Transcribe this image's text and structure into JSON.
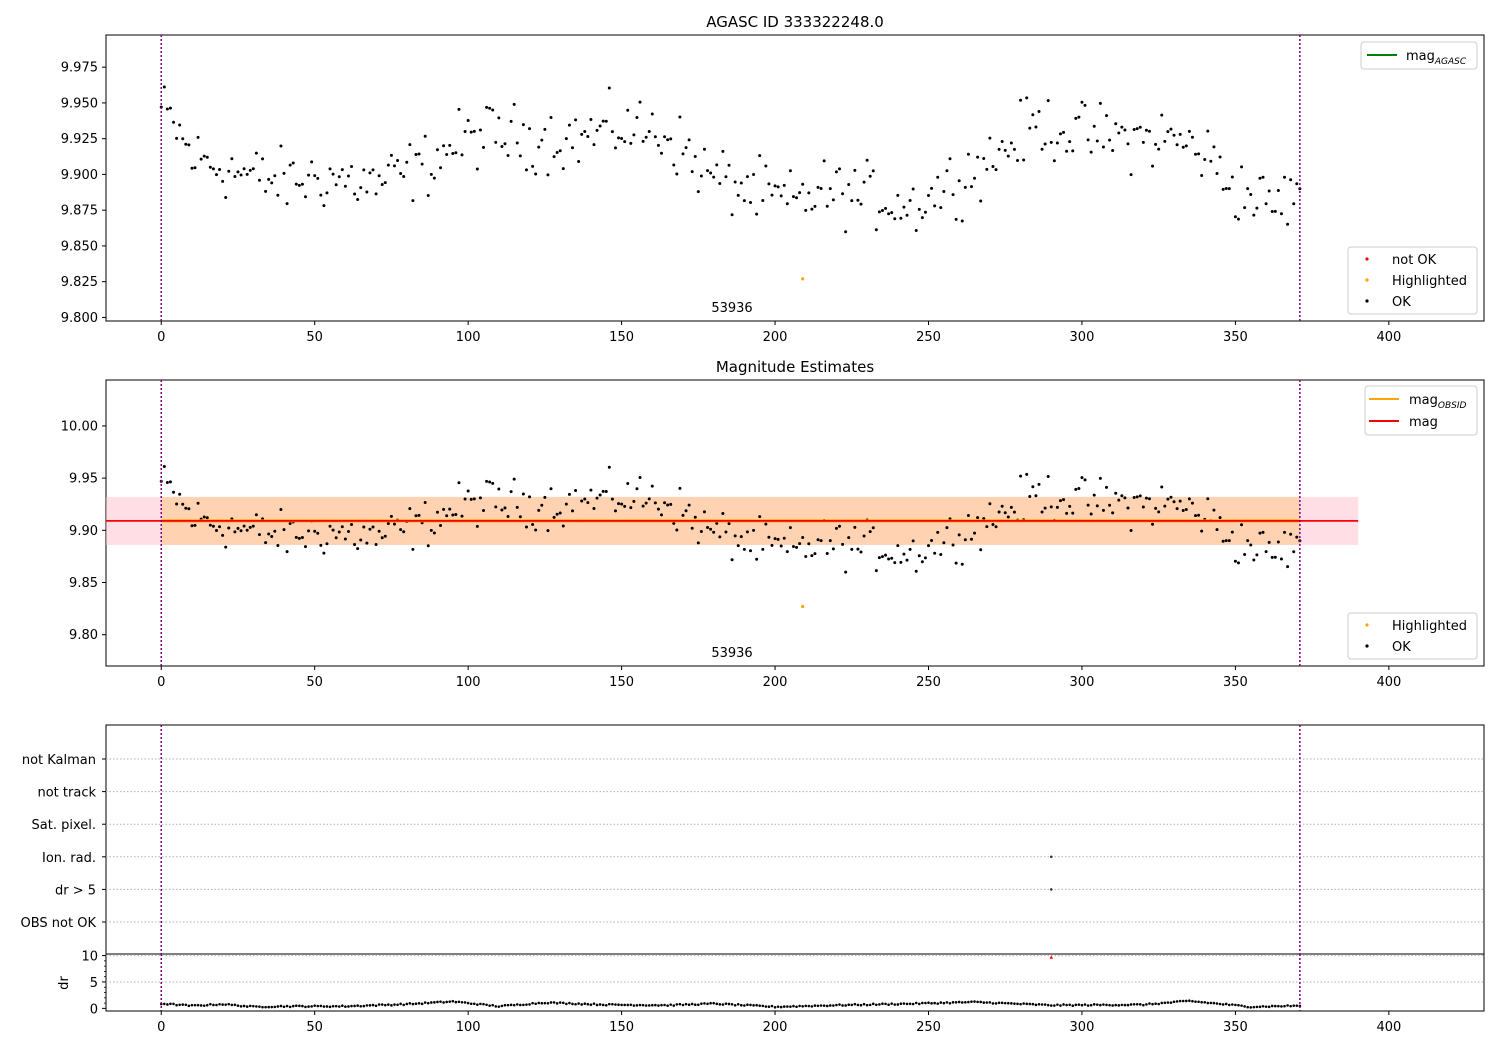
{
  "chart_data": [
    {
      "type": "scatter",
      "title": "AGASC ID 333322248.0",
      "xlim": [
        -18,
        431
      ],
      "ylim": [
        9.7975,
        9.9975
      ],
      "xticks": [
        0,
        50,
        100,
        150,
        200,
        250,
        300,
        350,
        400
      ],
      "yticks": [
        9.8,
        9.825,
        9.85,
        9.875,
        9.9,
        9.925,
        9.95,
        9.975
      ],
      "ytick_labels": [
        "9.800",
        "9.825",
        "9.850",
        "9.875",
        "9.900",
        "9.925",
        "9.950",
        "9.975"
      ],
      "vlines": [
        0,
        371
      ],
      "annotation": {
        "text": "53936",
        "x": 185
      },
      "legend_lines": [
        {
          "main": "mag",
          "sub": "AGASC",
          "color": "#008000"
        }
      ],
      "legend_markers": [
        {
          "label": "not OK",
          "color": "#ff0000"
        },
        {
          "label": "Highlighted",
          "color": "#ffa500"
        },
        {
          "label": "OK",
          "color": "#000000"
        }
      ],
      "highlighted_points": [
        {
          "x": 209,
          "y": 9.827
        }
      ]
    },
    {
      "type": "scatter",
      "title": "Magnitude Estimates",
      "xlim": [
        -18,
        431
      ],
      "ylim": [
        9.77,
        10.044
      ],
      "xticks": [
        0,
        50,
        100,
        150,
        200,
        250,
        300,
        350,
        400
      ],
      "yticks": [
        9.8,
        9.85,
        9.9,
        9.95,
        10.0
      ],
      "ytick_labels": [
        "9.80",
        "9.85",
        "9.90",
        "9.95",
        "10.00"
      ],
      "vlines": [
        0,
        371
      ],
      "annotation": {
        "text": "53936",
        "x": 185
      },
      "mag": 9.909,
      "mag_band": [
        9.886,
        9.932
      ],
      "mag_band_xrange": [
        -18,
        390
      ],
      "mag_obsid": 9.909,
      "mag_obsid_band": [
        9.886,
        9.932
      ],
      "mag_obsid_xrange": [
        0,
        371
      ],
      "legend_lines": [
        {
          "main": "mag",
          "sub": "OBSID",
          "color": "#ffa500"
        },
        {
          "main": "mag",
          "sub": "",
          "color": "#ff0000"
        }
      ],
      "legend_markers": [
        {
          "label": "Highlighted",
          "color": "#ffa500"
        },
        {
          "label": "OK",
          "color": "#000000"
        }
      ],
      "highlighted_points": [
        {
          "x": 209,
          "y": 9.827
        }
      ]
    },
    {
      "type": "scatter",
      "xlim": [
        -18,
        431
      ],
      "flag_labels": [
        "not Kalman",
        "not track",
        "Sat. pixel.",
        "Ion. rad.",
        "dr > 5",
        "OBS not OK"
      ],
      "flag_points": [
        {
          "flag": "Ion. rad.",
          "x": 290
        },
        {
          "flag": "dr > 5",
          "x": 290
        }
      ],
      "vlines": [
        0,
        371
      ]
    },
    {
      "type": "scatter",
      "xlim": [
        -18,
        431
      ],
      "ylim": [
        -0.5,
        10.3
      ],
      "ylabel": "dr",
      "yticks": [
        0,
        5,
        10
      ],
      "xticks": [
        0,
        50,
        100,
        150,
        200,
        250,
        300,
        350,
        400
      ],
      "vlines": [
        0,
        371
      ],
      "red_points": [
        {
          "x": 290,
          "y": 9.7
        }
      ],
      "segment_means": [
        {
          "x": 0,
          "y": 0.9
        },
        {
          "x": 10,
          "y": 0.5
        },
        {
          "x": 20,
          "y": 0.8
        },
        {
          "x": 30,
          "y": 0.3
        },
        {
          "x": 40,
          "y": 0.4
        },
        {
          "x": 60,
          "y": 0.4
        },
        {
          "x": 80,
          "y": 0.8
        },
        {
          "x": 95,
          "y": 1.3
        },
        {
          "x": 110,
          "y": 0.4
        },
        {
          "x": 125,
          "y": 1.1
        },
        {
          "x": 145,
          "y": 0.7
        },
        {
          "x": 165,
          "y": 0.6
        },
        {
          "x": 180,
          "y": 0.9
        },
        {
          "x": 200,
          "y": 0.3
        },
        {
          "x": 220,
          "y": 0.6
        },
        {
          "x": 245,
          "y": 0.9
        },
        {
          "x": 265,
          "y": 1.2
        },
        {
          "x": 290,
          "y": 0.6
        },
        {
          "x": 320,
          "y": 0.7
        },
        {
          "x": 335,
          "y": 1.4
        },
        {
          "x": 355,
          "y": 0.3
        },
        {
          "x": 370,
          "y": 0.5
        }
      ]
    }
  ],
  "mag_series": {
    "n": 372,
    "high_pt": {
      "x": 209,
      "y": 9.827
    },
    "anchors": [
      {
        "x": 0,
        "y": 9.945
      },
      {
        "x": 4,
        "y": 9.935
      },
      {
        "x": 10,
        "y": 9.912
      },
      {
        "x": 20,
        "y": 9.905
      },
      {
        "x": 30,
        "y": 9.898
      },
      {
        "x": 40,
        "y": 9.895
      },
      {
        "x": 55,
        "y": 9.898
      },
      {
        "x": 70,
        "y": 9.893
      },
      {
        "x": 85,
        "y": 9.905
      },
      {
        "x": 95,
        "y": 9.92
      },
      {
        "x": 105,
        "y": 9.928
      },
      {
        "x": 120,
        "y": 9.925
      },
      {
        "x": 135,
        "y": 9.925
      },
      {
        "x": 150,
        "y": 9.933
      },
      {
        "x": 165,
        "y": 9.928
      },
      {
        "x": 178,
        "y": 9.9
      },
      {
        "x": 190,
        "y": 9.89
      },
      {
        "x": 205,
        "y": 9.88
      },
      {
        "x": 215,
        "y": 9.888
      },
      {
        "x": 230,
        "y": 9.885
      },
      {
        "x": 245,
        "y": 9.878
      },
      {
        "x": 258,
        "y": 9.895
      },
      {
        "x": 270,
        "y": 9.91
      },
      {
        "x": 285,
        "y": 9.935
      },
      {
        "x": 300,
        "y": 9.928
      },
      {
        "x": 315,
        "y": 9.925
      },
      {
        "x": 330,
        "y": 9.925
      },
      {
        "x": 340,
        "y": 9.915
      },
      {
        "x": 350,
        "y": 9.89
      },
      {
        "x": 362,
        "y": 9.878
      },
      {
        "x": 371,
        "y": 9.887
      }
    ]
  }
}
